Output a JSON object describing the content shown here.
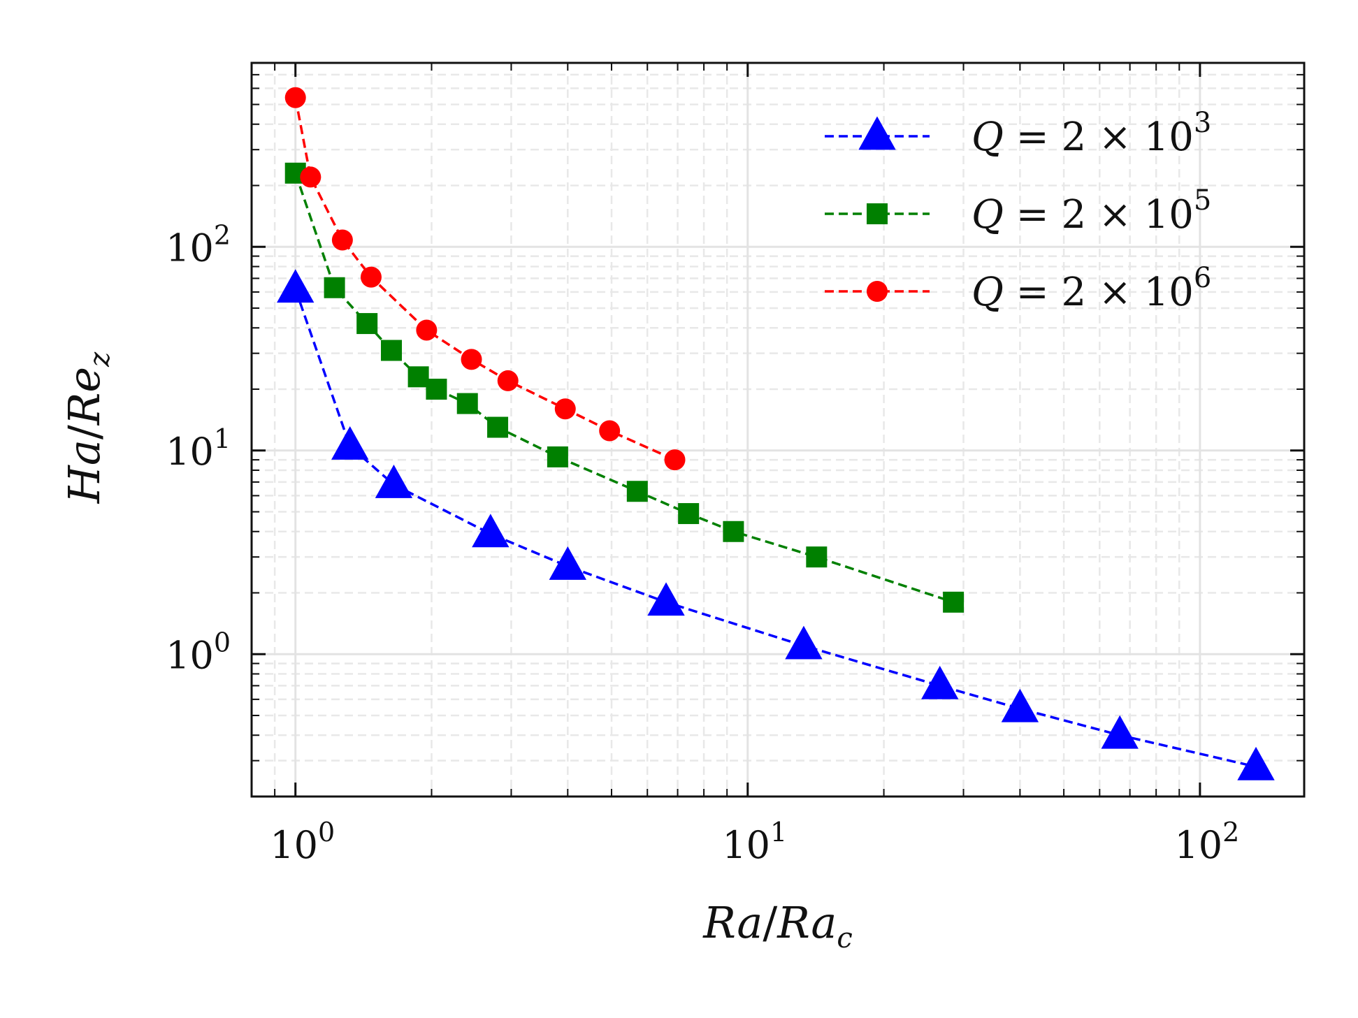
{
  "chart_data": {
    "type": "line",
    "xscale": "log",
    "yscale": "log",
    "xlim": [
      0.8,
      170
    ],
    "ylim": [
      0.2,
      800
    ],
    "grid": true,
    "legend_position": "top-right",
    "xlabel": {
      "var": "Ra",
      "sep": "/",
      "base": "Ra",
      "sub": "c"
    },
    "ylabel": {
      "var": "Ha",
      "sep": "/",
      "base": "Re",
      "sub": "z"
    },
    "x_ticks": [
      {
        "base": "10",
        "exp": "0",
        "value": 1
      },
      {
        "base": "10",
        "exp": "1",
        "value": 10
      },
      {
        "base": "10",
        "exp": "2",
        "value": 100
      }
    ],
    "y_ticks": [
      {
        "base": "10",
        "exp": "0",
        "value": 1
      },
      {
        "base": "10",
        "exp": "1",
        "value": 10
      },
      {
        "base": "10",
        "exp": "2",
        "value": 100
      }
    ],
    "series": [
      {
        "name": "Q = 2 × 10^3",
        "legend": {
          "var": "Q",
          "rest": " = 2 × 10",
          "exp": "3"
        },
        "color": "#0000ff",
        "marker": "triangle",
        "x": [
          1.0,
          1.32,
          1.65,
          2.7,
          4.0,
          6.6,
          13.3,
          26.6,
          40.0,
          66.5,
          133.0
        ],
        "y": [
          62,
          10.5,
          6.8,
          3.9,
          2.7,
          1.8,
          1.1,
          0.7,
          0.54,
          0.4,
          0.28
        ]
      },
      {
        "name": "Q = 2 × 10^5",
        "legend": {
          "var": "Q",
          "rest": " = 2 × 10",
          "exp": "5"
        },
        "color": "#008000",
        "marker": "square",
        "x": [
          1.0,
          1.22,
          1.44,
          1.63,
          1.87,
          2.05,
          2.4,
          2.8,
          3.8,
          5.7,
          7.4,
          9.3,
          14.2,
          28.5
        ],
        "y": [
          230,
          63,
          42,
          31,
          23,
          20,
          17,
          13,
          9.3,
          6.3,
          4.9,
          4.0,
          3.0,
          1.8
        ]
      },
      {
        "name": "Q = 2 × 10^6",
        "legend": {
          "var": "Q",
          "rest": " = 2 × 10",
          "exp": "6"
        },
        "color": "#ff0000",
        "marker": "circle",
        "x": [
          1.0,
          1.08,
          1.27,
          1.47,
          1.95,
          2.45,
          2.95,
          3.95,
          4.95,
          6.9
        ],
        "y": [
          540,
          220,
          108,
          71,
          39,
          28,
          22,
          16,
          12.5,
          9.0
        ]
      }
    ]
  }
}
